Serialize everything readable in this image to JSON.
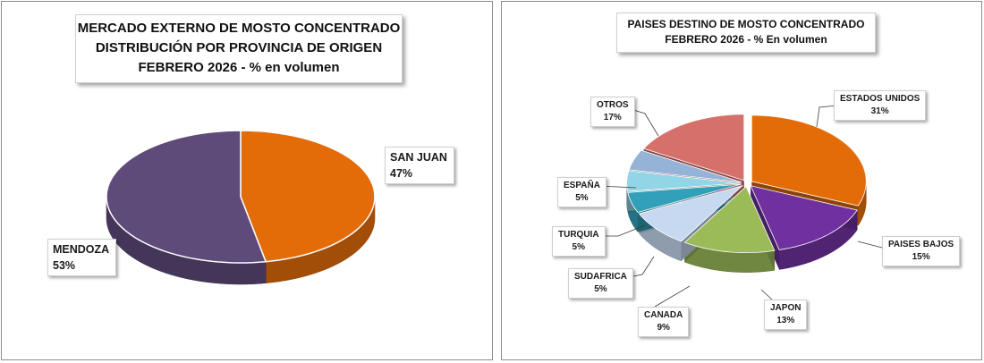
{
  "charts": [
    {
      "title_lines": [
        "MERCADO EXTERNO DE MOSTO CONCENTRADO",
        "DISTRIBUCIÓN POR PROVINCIA DE ORIGEN",
        "FEBRERO 2026 - % en volumen"
      ]
    },
    {
      "title_lines": [
        "PAISES DESTINO  DE MOSTO CONCENTRADO",
        "FEBRERO  2026 - % En volumen"
      ]
    }
  ],
  "chart_data": [
    {
      "type": "pie",
      "title": "MERCADO EXTERNO DE MOSTO CONCENTRADO DISTRIBUCIÓN POR PROVINCIA DE ORIGEN FEBRERO 2026 - % en volumen",
      "categories": [
        "SAN JUAN",
        "MENDOZA"
      ],
      "values": [
        47,
        53
      ],
      "value_labels": [
        "47%",
        "53%"
      ],
      "colors": [
        "#E36C09",
        "#5F4B7A"
      ]
    },
    {
      "type": "pie",
      "title": "PAISES DESTINO  DE MOSTO CONCENTRADO FEBRERO  2026 - % En volumen",
      "categories": [
        "ESTADOS  UNIDOS",
        "PAISES  BAJOS",
        "JAPON",
        "CANADA",
        "SUDAFRICA",
        "TURQUIA",
        "ESPAÑA",
        "OTROS"
      ],
      "values": [
        31,
        15,
        13,
        9,
        5,
        5,
        5,
        17
      ],
      "value_labels": [
        "31%",
        "15%",
        "13%",
        "9%",
        "5%",
        "5%",
        "5%",
        "17%"
      ],
      "colors": [
        "#E36C09",
        "#7030A0",
        "#9BBB59",
        "#C6D9F1",
        "#31A0B8",
        "#92D5E6",
        "#95B3D7",
        "#D6706A"
      ],
      "exploded": true
    }
  ]
}
